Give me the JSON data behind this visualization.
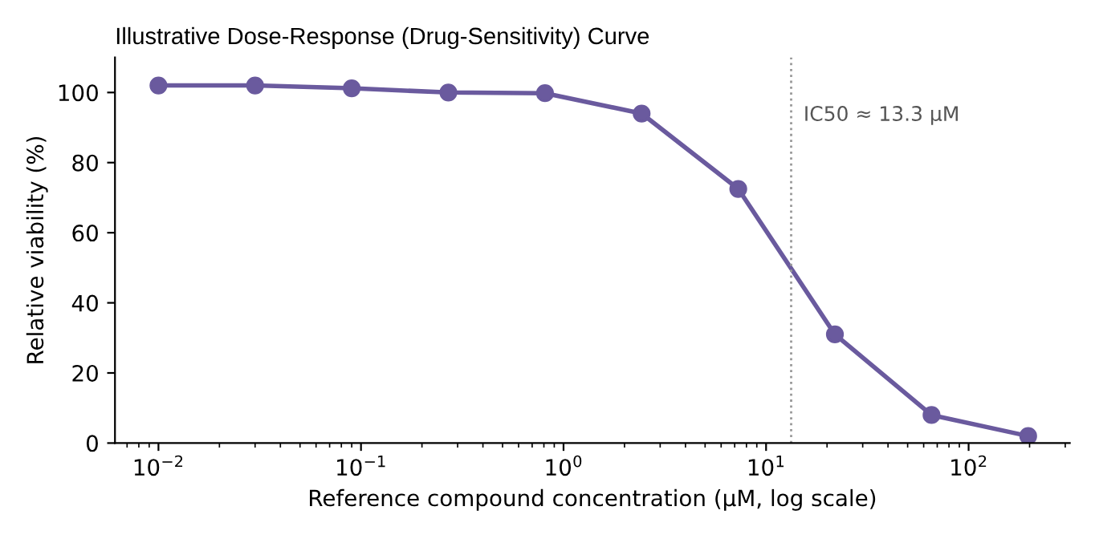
{
  "chart_data": {
    "type": "line",
    "title": "Illustrative Dose-Response (Drug-Sensitivity) Curve",
    "xlabel": "Reference compound concentration (µM, log scale)",
    "ylabel": "Relative viability (%)",
    "x": [
      0.01,
      0.03,
      0.09,
      0.27,
      0.81,
      2.43,
      7.29,
      21.87,
      65.61,
      196.83
    ],
    "series": [
      {
        "color": "#6a5a9e",
        "values": [
          102,
          102,
          101.2,
          100,
          99.8,
          94,
          72.5,
          31,
          8,
          2
        ]
      }
    ],
    "log": "x",
    "xlim": [
      0.0061,
      316
    ],
    "ylim": [
      0,
      110
    ],
    "xticks": [
      {
        "value": 0.01,
        "label": "10$^{−2}$"
      },
      {
        "value": 0.1,
        "label": "10$^{−1}$"
      },
      {
        "value": 1,
        "label": "10$^{0}$"
      },
      {
        "value": 10,
        "label": "10$^{1}$"
      },
      {
        "value": 100,
        "label": "10$^{2}$"
      }
    ],
    "yticks": [
      0,
      20,
      40,
      60,
      80,
      100
    ],
    "ref_lines": [
      {
        "axis": "x",
        "value": 13.3,
        "label": "IC50 ≈ 13.3 µM",
        "color": "#999999",
        "line_style": "dotted"
      }
    ],
    "marker": "circle",
    "line_style": "solid",
    "grid": false,
    "legend": false
  }
}
